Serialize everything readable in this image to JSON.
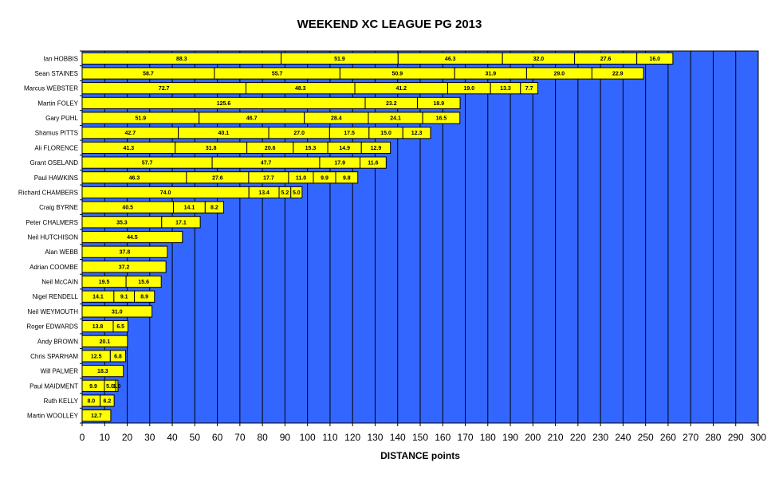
{
  "chart_data": {
    "type": "bar",
    "orientation": "horizontal",
    "stacked": true,
    "title": "WEEKEND XC LEAGUE PG 2013",
    "xlabel": "DISTANCE points",
    "ylabel": "",
    "xlim": [
      0,
      300
    ],
    "x_ticks": [
      0,
      10,
      20,
      30,
      40,
      50,
      60,
      70,
      80,
      90,
      100,
      110,
      120,
      130,
      140,
      150,
      160,
      170,
      180,
      190,
      200,
      210,
      220,
      230,
      240,
      250,
      260,
      270,
      280,
      290,
      300
    ],
    "grid": true,
    "legend": "none",
    "colors": {
      "plot_bg": "#3366ff",
      "bar": "#ffff00",
      "bar_border": "#000000",
      "grid": "#000000"
    },
    "categories": [
      "Ian HOBBIS",
      "Sean STAINES",
      "Marcus WEBSTER",
      "Martin FOLEY",
      "Gary PUHL",
      "Shamus PITTS",
      "Ali FLORENCE",
      "Grant OSELAND",
      "Paul HAWKINS",
      "Richard CHAMBERS",
      "Craig BYRNE",
      "Peter CHALMERS",
      "Neil HUTCHISON",
      "Alan WEBB",
      "Adrian COOMBE",
      "Neil McCAIN",
      "Nigel RENDELL",
      "Neil WEYMOUTH",
      "Roger EDWARDS",
      "Andy BROWN",
      "Chris SPARHAM",
      "Will PALMER",
      "Paul MAIDMENT",
      "Ruth KELLY",
      "Martin WOOLLEY"
    ],
    "values": [
      [
        88.3,
        51.9,
        46.3,
        32.0,
        27.6,
        16.0
      ],
      [
        58.7,
        55.7,
        50.9,
        31.9,
        29.0,
        22.9
      ],
      [
        72.7,
        48.3,
        41.2,
        19.0,
        13.3,
        7.7
      ],
      [
        125.6,
        23.2,
        18.9
      ],
      [
        51.9,
        46.7,
        28.4,
        24.1,
        16.5
      ],
      [
        42.7,
        40.1,
        27.0,
        17.5,
        15.0,
        12.3
      ],
      [
        41.3,
        31.8,
        20.6,
        15.3,
        14.9,
        12.9
      ],
      [
        57.7,
        47.7,
        17.9,
        11.6
      ],
      [
        46.3,
        27.6,
        17.7,
        11.0,
        9.9,
        9.8
      ],
      [
        74.0,
        13.4,
        5.2,
        5.0
      ],
      [
        40.5,
        14.1,
        8.2
      ],
      [
        35.3,
        17.1
      ],
      [
        44.5
      ],
      [
        37.8
      ],
      [
        37.2
      ],
      [
        19.5,
        15.6
      ],
      [
        14.1,
        9.1,
        8.9
      ],
      [
        31.0
      ],
      [
        13.8,
        6.5
      ],
      [
        20.1
      ],
      [
        12.5,
        6.8
      ],
      [
        18.3
      ],
      [
        9.9,
        5.0,
        1.0
      ],
      [
        8.0,
        6.2
      ],
      [
        12.7
      ]
    ],
    "value_labels": [
      [
        "88.3",
        "51.9",
        "46.3",
        "32.0",
        "27.6",
        "16.0"
      ],
      [
        "58.7",
        "55.7",
        "50.9",
        "31.9",
        "29.0",
        "22.9"
      ],
      [
        "72.7",
        "48.3",
        "41.2",
        "19.0",
        "13.3",
        "7.7"
      ],
      [
        "125.6",
        "23.2",
        "18.9"
      ],
      [
        "51.9",
        "46.7",
        "28.4",
        "24.1",
        "16.5"
      ],
      [
        "42.7",
        "40.1",
        "27.0",
        "17.5",
        "15.0",
        "12.3"
      ],
      [
        "41.3",
        "31.8",
        "20.6",
        "15.3",
        "14.9",
        "12.9"
      ],
      [
        "57.7",
        "47.7",
        "17.9",
        "11.6"
      ],
      [
        "46.3",
        "27.6",
        "17.7",
        "11.0",
        "9.9",
        "9.8"
      ],
      [
        "74.0",
        "13.4",
        "5.2",
        "5.0"
      ],
      [
        "40.5",
        "14.1",
        "8.2"
      ],
      [
        "35.3",
        "17.1"
      ],
      [
        "44.5"
      ],
      [
        "37.8"
      ],
      [
        "37.2"
      ],
      [
        "19.5",
        "15.6"
      ],
      [
        "14.1",
        "9.1",
        "8.9"
      ],
      [
        "31.0"
      ],
      [
        "13.8",
        "6.5"
      ],
      [
        "20.1"
      ],
      [
        "12.5",
        "6.8"
      ],
      [
        "18.3"
      ],
      [
        "9.9",
        "5.0",
        "1.0"
      ],
      [
        "8.0",
        "6.2"
      ],
      [
        "12.7"
      ]
    ]
  }
}
